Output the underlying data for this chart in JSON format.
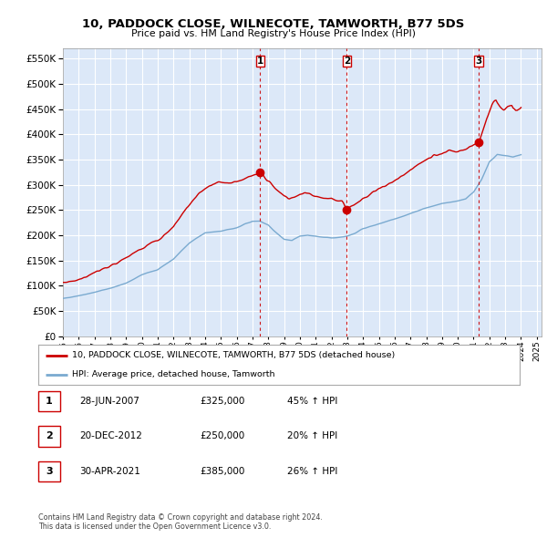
{
  "title": "10, PADDOCK CLOSE, WILNECOTE, TAMWORTH, B77 5DS",
  "subtitle": "Price paid vs. HM Land Registry's House Price Index (HPI)",
  "yticks": [
    0,
    50000,
    100000,
    150000,
    200000,
    250000,
    300000,
    350000,
    400000,
    450000,
    500000,
    550000
  ],
  "ylim": [
    0,
    570000
  ],
  "xlim_start": 1995.0,
  "xlim_end": 2025.3,
  "background_color": "#ffffff",
  "plot_bg_color": "#dce8f8",
  "grid_color": "#ffffff",
  "red_color": "#cc0000",
  "blue_color": "#7aaad0",
  "shade_color": "#dce8f8",
  "sale_dates_num": [
    2007.49,
    2012.97,
    2021.33
  ],
  "sale_prices": [
    325000,
    250000,
    385000
  ],
  "sale_labels": [
    "1",
    "2",
    "3"
  ],
  "sale_info": [
    {
      "num": "1",
      "date": "28-JUN-2007",
      "price": "£325,000",
      "hpi": "45% ↑ HPI"
    },
    {
      "num": "2",
      "date": "20-DEC-2012",
      "price": "£250,000",
      "hpi": "20% ↑ HPI"
    },
    {
      "num": "3",
      "date": "30-APR-2021",
      "price": "£385,000",
      "hpi": "26% ↑ HPI"
    }
  ],
  "legend_red": "10, PADDOCK CLOSE, WILNECOTE, TAMWORTH, B77 5DS (detached house)",
  "legend_blue": "HPI: Average price, detached house, Tamworth",
  "footer1": "Contains HM Land Registry data © Crown copyright and database right 2024.",
  "footer2": "This data is licensed under the Open Government Licence v3.0."
}
